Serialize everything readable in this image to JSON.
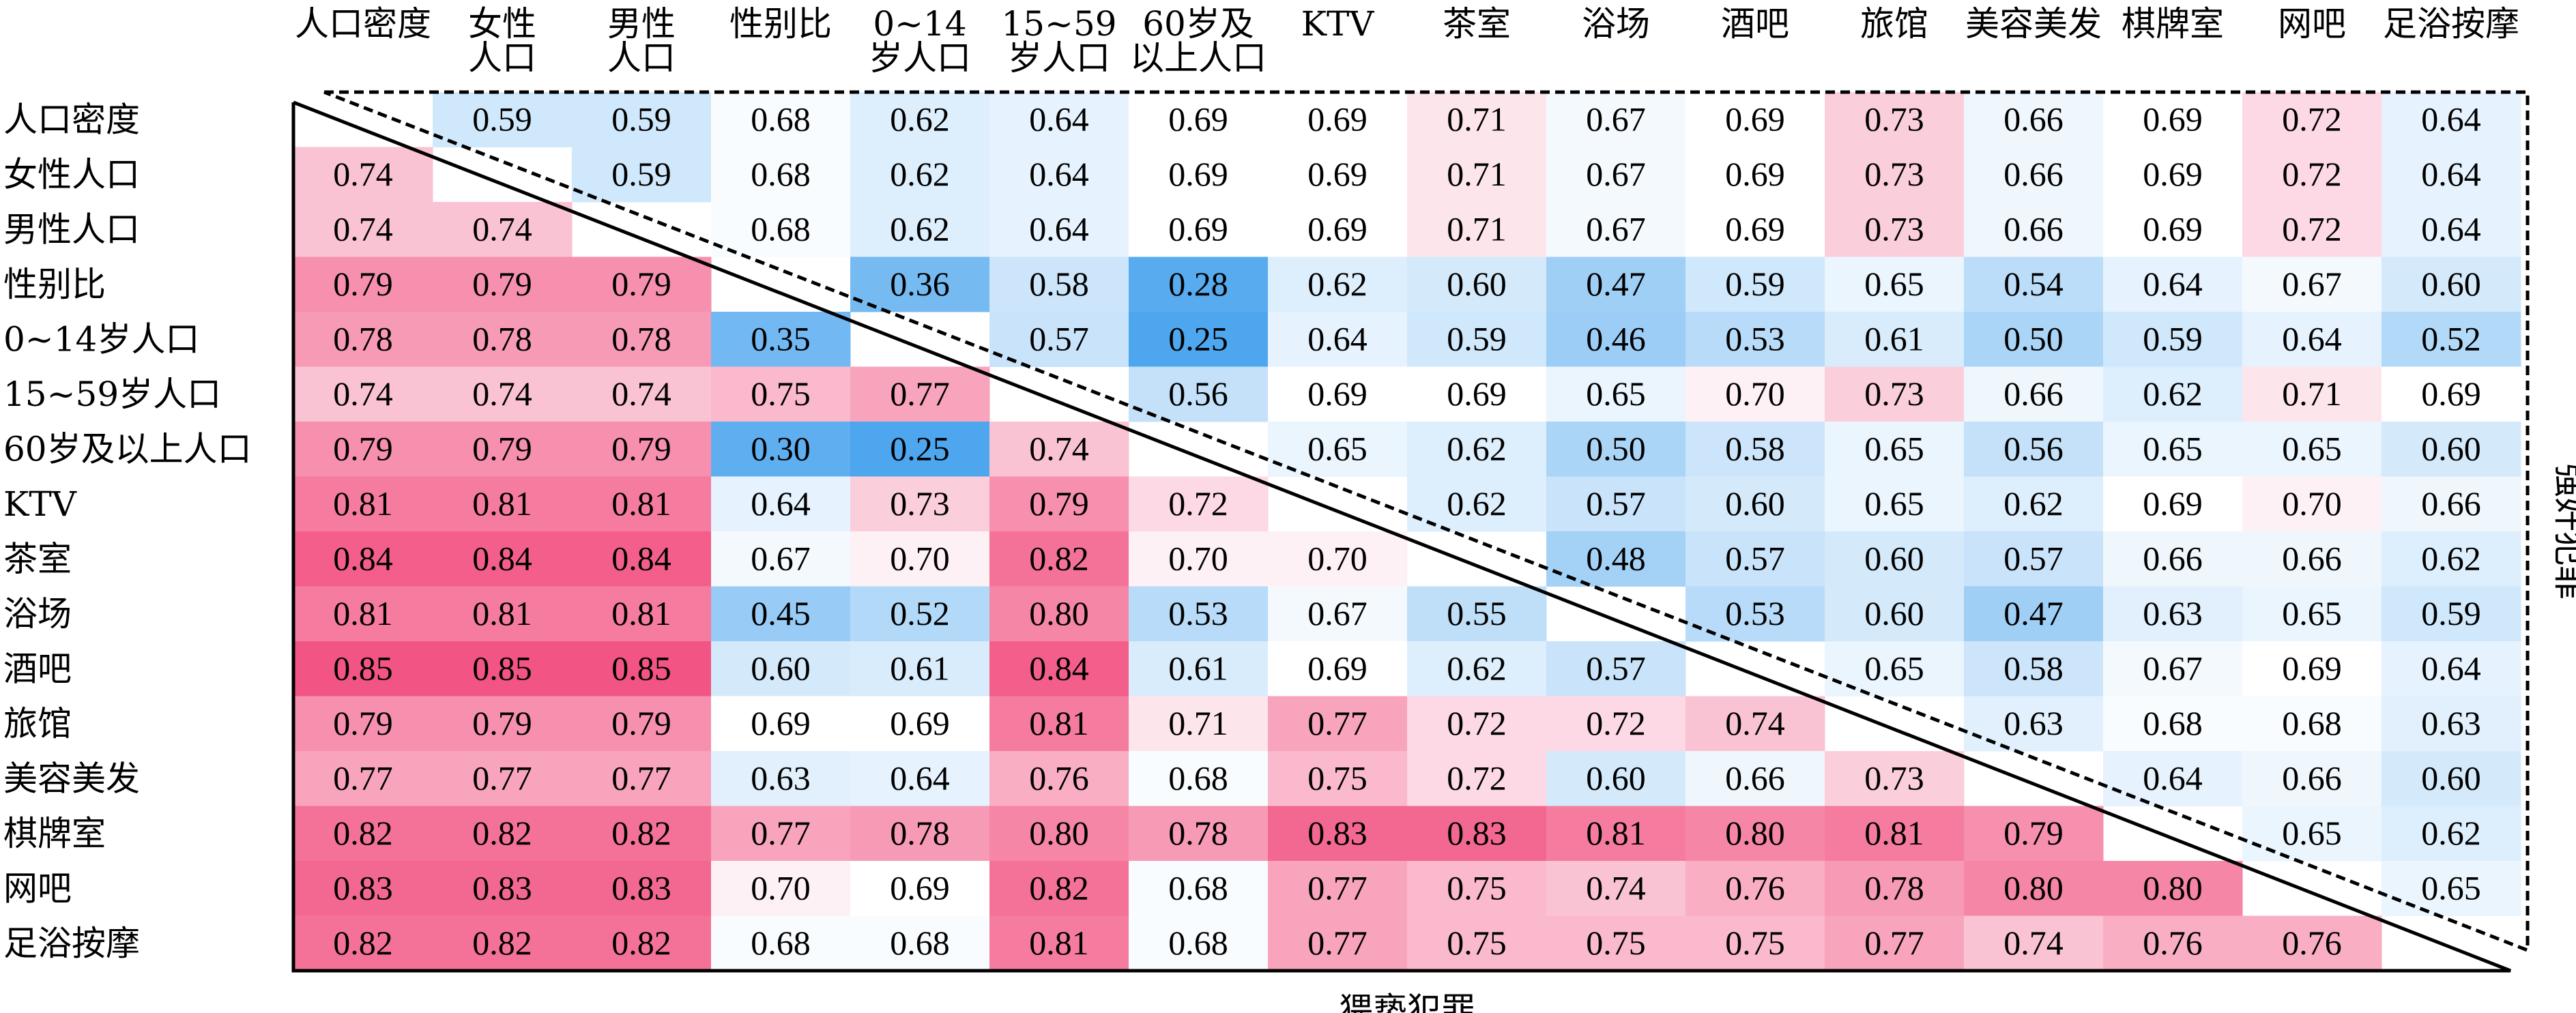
{
  "chart_data": {
    "type": "heatmap",
    "labels": [
      "人口密度",
      "女性人口",
      "男性人口",
      "性别比",
      "0~14岁人口",
      "15~59岁人口",
      "60岁及以上人口",
      "KTV",
      "茶室",
      "浴场",
      "酒吧",
      "旅馆",
      "美容美发",
      "棋牌室",
      "网吧",
      "足浴按摩"
    ],
    "column_labels": [
      [
        "人口密度"
      ],
      [
        "女性",
        "人口"
      ],
      [
        "男性",
        "人口"
      ],
      [
        "性别比"
      ],
      [
        "0~14",
        "岁人口"
      ],
      [
        "15~59",
        "岁人口"
      ],
      [
        "60岁及",
        "以上人口"
      ],
      [
        "KTV"
      ],
      [
        "茶室"
      ],
      [
        "浴场"
      ],
      [
        "酒吧"
      ],
      [
        "旅馆"
      ],
      [
        "美容美发"
      ],
      [
        "棋牌室"
      ],
      [
        "网吧"
      ],
      [
        "足浴按摩"
      ]
    ],
    "xlabel": "猥亵犯罪",
    "ylabel": "强奸犯罪",
    "values": [
      [
        null,
        0.59,
        0.59,
        0.68,
        0.62,
        0.64,
        0.69,
        0.69,
        0.71,
        0.67,
        0.69,
        0.73,
        0.66,
        0.69,
        0.72,
        0.64
      ],
      [
        0.74,
        null,
        0.59,
        0.68,
        0.62,
        0.64,
        0.69,
        0.69,
        0.71,
        0.67,
        0.69,
        0.73,
        0.66,
        0.69,
        0.72,
        0.64
      ],
      [
        0.74,
        0.74,
        null,
        0.68,
        0.62,
        0.64,
        0.69,
        0.69,
        0.71,
        0.67,
        0.69,
        0.73,
        0.66,
        0.69,
        0.72,
        0.64
      ],
      [
        0.79,
        0.79,
        0.79,
        null,
        0.36,
        0.58,
        0.28,
        0.62,
        0.6,
        0.47,
        0.59,
        0.65,
        0.54,
        0.64,
        0.67,
        0.6
      ],
      [
        0.78,
        0.78,
        0.78,
        0.35,
        null,
        0.57,
        0.25,
        0.64,
        0.59,
        0.46,
        0.53,
        0.61,
        0.5,
        0.59,
        0.64,
        0.52
      ],
      [
        0.74,
        0.74,
        0.74,
        0.75,
        0.77,
        null,
        0.56,
        0.69,
        0.69,
        0.65,
        0.7,
        0.73,
        0.66,
        0.62,
        0.71,
        0.69
      ],
      [
        0.79,
        0.79,
        0.79,
        0.3,
        0.25,
        0.74,
        null,
        0.65,
        0.62,
        0.5,
        0.58,
        0.65,
        0.56,
        0.65,
        0.65,
        0.6
      ],
      [
        0.81,
        0.81,
        0.81,
        0.64,
        0.73,
        0.79,
        0.72,
        null,
        0.62,
        0.57,
        0.6,
        0.65,
        0.62,
        0.69,
        0.7,
        0.66
      ],
      [
        0.84,
        0.84,
        0.84,
        0.67,
        0.7,
        0.82,
        0.7,
        0.7,
        null,
        0.48,
        0.57,
        0.6,
        0.57,
        0.66,
        0.66,
        0.62
      ],
      [
        0.81,
        0.81,
        0.81,
        0.45,
        0.52,
        0.8,
        0.53,
        0.67,
        0.55,
        null,
        0.53,
        0.6,
        0.47,
        0.63,
        0.65,
        0.59
      ],
      [
        0.85,
        0.85,
        0.85,
        0.6,
        0.61,
        0.84,
        0.61,
        0.69,
        0.62,
        0.57,
        null,
        0.65,
        0.58,
        0.67,
        0.69,
        0.64
      ],
      [
        0.79,
        0.79,
        0.79,
        0.69,
        0.69,
        0.81,
        0.71,
        0.77,
        0.72,
        0.72,
        0.74,
        null,
        0.63,
        0.68,
        0.68,
        0.63
      ],
      [
        0.77,
        0.77,
        0.77,
        0.63,
        0.64,
        0.76,
        0.68,
        0.75,
        0.72,
        0.6,
        0.66,
        0.73,
        null,
        0.64,
        0.66,
        0.6
      ],
      [
        0.82,
        0.82,
        0.82,
        0.77,
        0.78,
        0.8,
        0.78,
        0.83,
        0.83,
        0.81,
        0.8,
        0.81,
        0.79,
        null,
        0.65,
        0.62
      ],
      [
        0.83,
        0.83,
        0.83,
        0.7,
        0.69,
        0.82,
        0.68,
        0.77,
        0.75,
        0.74,
        0.76,
        0.78,
        0.8,
        0.8,
        null,
        0.65
      ],
      [
        0.82,
        0.82,
        0.82,
        0.68,
        0.68,
        0.81,
        0.68,
        0.77,
        0.75,
        0.75,
        0.75,
        0.77,
        0.74,
        0.76,
        0.76,
        null
      ]
    ],
    "lower_triangle_series": "猥亵犯罪",
    "upper_triangle_series": "强奸犯罪",
    "diagonal": "empty",
    "color_scale": {
      "low": "#4da6ee",
      "mid": "#ffffff",
      "high": "#f25583",
      "mid_value": 0.69
    }
  }
}
